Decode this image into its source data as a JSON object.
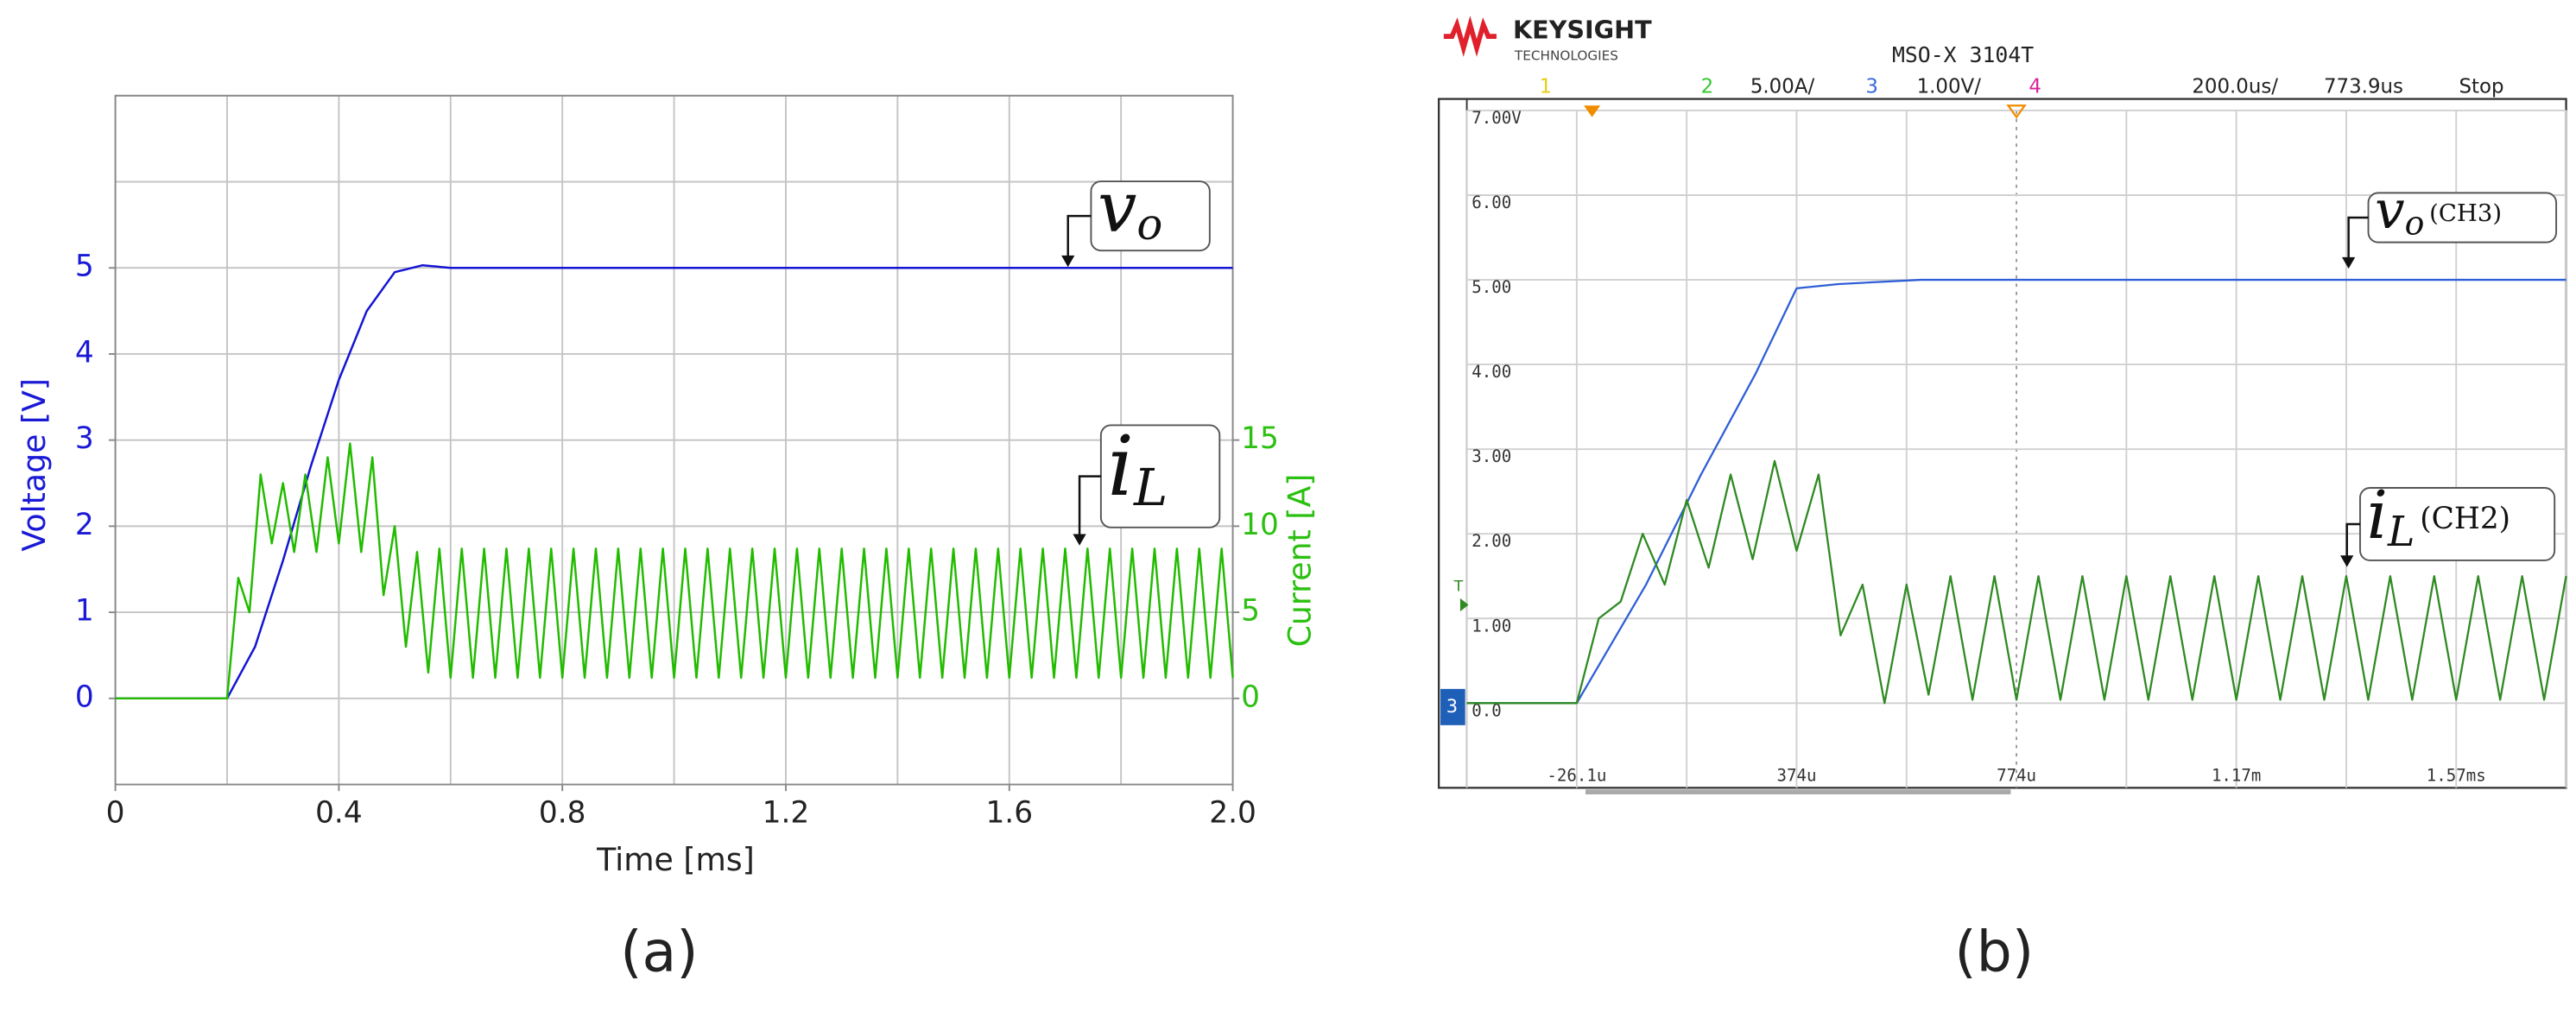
{
  "chart_data": [
    {
      "type": "line",
      "caption": "(a)",
      "xlabel": "Time [ms]",
      "ylabel": "Voltage [V]",
      "y2label": "Current [A]",
      "ylabel_color": "#1a1ad6",
      "y2label_color": "#2cc012",
      "grid": true,
      "xlim": [
        0,
        2
      ],
      "xticks": [
        0,
        0.4,
        0.8,
        1.2,
        1.6,
        {
          "value": 2,
          "label": "2.0"
        }
      ],
      "xgrid": [
        0,
        0.2,
        0.4,
        0.6,
        0.8,
        1.0,
        1.2,
        1.4,
        1.6,
        1.8,
        2.0
      ],
      "ylim": [
        -1,
        7
      ],
      "yticks": [
        0,
        1,
        2,
        3,
        4,
        5
      ],
      "ygrid": [
        -1,
        0,
        1,
        2,
        3,
        4,
        5,
        6,
        7
      ],
      "y2lim": [
        -5,
        35
      ],
      "y2ticks": [
        0,
        5,
        10,
        15
      ],
      "series": [
        {
          "name": "v",
          "subscript": "o",
          "color": "#1414d4",
          "axis": "y",
          "x": [
            0,
            0.2,
            0.25,
            0.3,
            0.35,
            0.4,
            0.45,
            0.5,
            0.55,
            0.6,
            2.0
          ],
          "values": [
            0,
            0,
            0.6,
            1.6,
            2.7,
            3.7,
            4.5,
            4.95,
            5.03,
            5.0,
            5.0
          ]
        },
        {
          "name": "i",
          "subscript": "L",
          "color": "#22bb00",
          "axis": "y2",
          "x": [
            0,
            0.2,
            0.22,
            0.24,
            0.26,
            0.28,
            0.3,
            0.32,
            0.34,
            0.36,
            0.38,
            0.4,
            0.42,
            0.44,
            0.46,
            0.48,
            0.5,
            0.52,
            0.54,
            0.56,
            0.58,
            0.6,
            0.62,
            0.64,
            0.66,
            0.68,
            0.7,
            0.72,
            0.74,
            0.76,
            0.78,
            0.8,
            0.82,
            0.84,
            0.86,
            0.88,
            0.9,
            0.92,
            0.94,
            0.96,
            0.98,
            1.0,
            1.02,
            1.04,
            1.06,
            1.08,
            1.1,
            1.12,
            1.14,
            1.16,
            1.18,
            1.2,
            1.22,
            1.24,
            1.26,
            1.28,
            1.3,
            1.32,
            1.34,
            1.36,
            1.38,
            1.4,
            1.42,
            1.44,
            1.46,
            1.48,
            1.5,
            1.52,
            1.54,
            1.56,
            1.58,
            1.6,
            1.62,
            1.64,
            1.66,
            1.68,
            1.7,
            1.72,
            1.74,
            1.76,
            1.78,
            1.8,
            1.82,
            1.84,
            1.86,
            1.88,
            1.9,
            1.92,
            1.94,
            1.96,
            1.98,
            2.0
          ],
          "values": [
            0,
            0,
            7,
            5,
            13,
            9,
            12.5,
            8.5,
            13,
            8.5,
            14,
            9,
            14.8,
            8.5,
            14,
            6,
            10,
            3,
            8.5,
            1.5,
            8.7,
            1.2,
            8.7,
            1.2,
            8.7,
            1.2,
            8.7,
            1.2,
            8.7,
            1.2,
            8.7,
            1.2,
            8.7,
            1.2,
            8.7,
            1.2,
            8.7,
            1.2,
            8.7,
            1.2,
            8.7,
            1.2,
            8.7,
            1.2,
            8.7,
            1.2,
            8.7,
            1.2,
            8.7,
            1.2,
            8.7,
            1.2,
            8.7,
            1.2,
            8.7,
            1.2,
            8.7,
            1.2,
            8.7,
            1.2,
            8.7,
            1.2,
            8.7,
            1.2,
            8.7,
            1.2,
            8.7,
            1.2,
            8.7,
            1.2,
            8.7,
            1.2,
            8.7,
            1.2,
            8.7,
            1.2,
            8.7,
            1.2,
            8.7,
            1.2,
            8.7,
            1.2,
            8.7,
            1.2,
            8.7,
            1.2,
            8.7,
            1.2,
            8.7,
            1.2,
            8.7,
            1.2
          ]
        }
      ]
    },
    {
      "type": "scope",
      "caption": "(b)",
      "header": {
        "brand": "KEYSIGHT",
        "brand_sub": "TECHNOLOGIES",
        "model": "MSO-X 3104T",
        "channels": [
          {
            "number": "1",
            "color": "#e6cf1a"
          },
          {
            "number": "2",
            "scale": "5.00A/",
            "color": "#36c636"
          },
          {
            "number": "3",
            "scale": "1.00V/",
            "color": "#3a6ad8"
          },
          {
            "number": "4",
            "color": "#d8249e"
          }
        ],
        "timebase": "200.0us/",
        "delay": "773.9us",
        "status": "Stop"
      },
      "ground_marker": "3",
      "trigger_marker": "T",
      "grid": true,
      "xlim": [
        -226.1,
        1773.9
      ],
      "xticks": [
        {
          "value": -26.1,
          "label": "-26.1u"
        },
        {
          "value": 373.9,
          "label": "374u"
        },
        {
          "value": 773.9,
          "label": "774u"
        },
        {
          "value": 1173.9,
          "label": "1.17m"
        },
        {
          "value": 1573.9,
          "label": "1.57ms"
        }
      ],
      "xgrid": [
        -226.1,
        -26.1,
        173.9,
        373.9,
        573.9,
        773.9,
        973.9,
        1173.9,
        1373.9,
        1573.9,
        1773.9
      ],
      "ylim": [
        -1,
        7
      ],
      "yticks": [
        {
          "value": 7,
          "label": "7.00V"
        },
        {
          "value": 6,
          "label": "6.00"
        },
        {
          "value": 5,
          "label": "5.00"
        },
        {
          "value": 4,
          "label": "4.00"
        },
        {
          "value": 3,
          "label": "3.00"
        },
        {
          "value": 2,
          "label": "2.00"
        },
        {
          "value": 1,
          "label": "1.00"
        },
        {
          "value": 0,
          "label": "0.0"
        }
      ],
      "y2lim": [
        -5,
        35
      ],
      "series": [
        {
          "name": "v",
          "subscript": "o",
          "note": "(CH3)",
          "color": "#2f5fd6",
          "axis": "y",
          "x": [
            -226.1,
            -26.1,
            100,
            200,
            300,
            373.9,
            450,
            600,
            1000,
            1773.9
          ],
          "values": [
            0,
            0,
            1.4,
            2.7,
            3.9,
            4.9,
            4.95,
            5.0,
            5.0,
            5.0
          ]
        },
        {
          "name": "i",
          "subscript": "L",
          "note": "(CH2)",
          "color": "#2f8a22",
          "axis": "y2",
          "x": [
            -226.1,
            -26.1,
            13.9,
            53.9,
            93.9,
            133.9,
            173.9,
            213.9,
            253.9,
            293.9,
            333.9,
            373.9,
            413.9,
            453.9,
            493.9,
            533.9,
            573.9,
            613.9,
            653.9,
            693.9,
            733.9,
            773.9,
            813.9,
            853.9,
            893.9,
            933.9,
            973.9,
            1013.9,
            1053.9,
            1093.9,
            1133.9,
            1173.9,
            1213.9,
            1253.9,
            1293.9,
            1333.9,
            1373.9,
            1413.9,
            1453.9,
            1493.9,
            1533.9,
            1573.9,
            1613.9,
            1653.9,
            1693.9,
            1733.9,
            1773.9
          ],
          "values": [
            0,
            0,
            5,
            6,
            10,
            7,
            12,
            8,
            13.5,
            8.5,
            14.3,
            9,
            13.5,
            4,
            7,
            0,
            7,
            0.5,
            7.5,
            0.2,
            7.5,
            0.2,
            7.5,
            0.2,
            7.5,
            0.2,
            7.5,
            0.2,
            7.5,
            0.2,
            7.5,
            0.2,
            7.5,
            0.2,
            7.5,
            0.2,
            7.5,
            0.2,
            7.5,
            0.2,
            7.5,
            0.2,
            7.5,
            0.2,
            7.5,
            0.2,
            7.5
          ]
        }
      ]
    }
  ]
}
